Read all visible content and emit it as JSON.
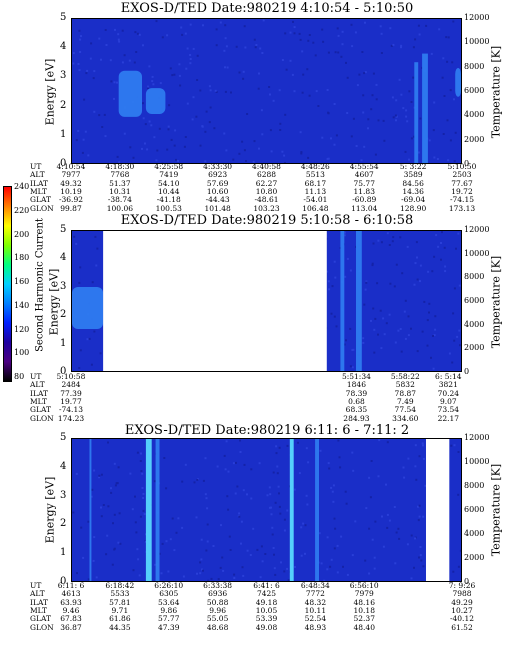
{
  "colorbar": {
    "label": "Second Harmonic Current",
    "ticks": [
      "240",
      "220",
      "200",
      "180",
      "160",
      "140",
      "120",
      "100",
      "80"
    ],
    "colors": [
      "#000000",
      "#4b0082",
      "#1e00a0",
      "#0020ff",
      "#0080ff",
      "#00d0ff",
      "#00ff80",
      "#80ff00",
      "#ffff00",
      "#ff8000",
      "#ff0000"
    ]
  },
  "panels": [
    {
      "title": "EXOS-D/TED   Date:980219  4:10:54 - 5:10:50",
      "ylabel": "Energy [eV]",
      "y2label": "Temperature [K]",
      "yticks": [
        "5",
        "4",
        "3",
        "2",
        "1",
        "0"
      ],
      "y2ticks": [
        "12000",
        "10000",
        "8000",
        "6000",
        "4000",
        "2000",
        "0"
      ],
      "row_labels": [
        "UT",
        "ALT",
        "ILAT",
        "MLT",
        "GLAT",
        "GLON"
      ],
      "columns": [
        {
          "ut": "4:10:54",
          "alt": "7977",
          "ilat": "49.32",
          "mlt": "10.19",
          "glat": "-36.92",
          "glon": "99.87"
        },
        {
          "ut": "4:18:30",
          "alt": "7768",
          "ilat": "51.37",
          "mlt": "10.31",
          "glat": "-38.74",
          "glon": "100.06"
        },
        {
          "ut": "4:25:58",
          "alt": "7419",
          "ilat": "54.10",
          "mlt": "10.44",
          "glat": "-41.18",
          "glon": "100.53"
        },
        {
          "ut": "4:33:30",
          "alt": "6923",
          "ilat": "57.69",
          "mlt": "10.60",
          "glat": "-44.43",
          "glon": "101.48"
        },
        {
          "ut": "4:40:58",
          "alt": "6288",
          "ilat": "62.27",
          "mlt": "10.80",
          "glat": "-48.61",
          "glon": "103.23"
        },
        {
          "ut": "4:48:26",
          "alt": "5513",
          "ilat": "68.17",
          "mlt": "11.13",
          "glat": "-54.01",
          "glon": "106.48"
        },
        {
          "ut": "4:55:54",
          "alt": "4607",
          "ilat": "75.77",
          "mlt": "11.83",
          "glat": "-60.89",
          "glon": "113.04"
        },
        {
          "ut": "5: 3:22",
          "alt": "3589",
          "ilat": "84.56",
          "mlt": "14.36",
          "glat": "-69.04",
          "glon": "128.90"
        },
        {
          "ut": "5:10:50",
          "alt": "2503",
          "ilat": "77.67",
          "mlt": "19.72",
          "glat": "-74.15",
          "glon": "173.13"
        }
      ]
    },
    {
      "title": "EXOS-D/TED   Date:980219  5:10:58 - 6:10:58",
      "ylabel": "Energy [eV]",
      "y2label": "Temperature [K]",
      "yticks": [
        "5",
        "4",
        "3",
        "2",
        "1",
        "0"
      ],
      "y2ticks": [
        "12000",
        "10000",
        "8000",
        "6000",
        "4000",
        "2000",
        "0"
      ],
      "row_labels": [
        "UT",
        "ALT",
        "ILAT",
        "MLT",
        "GLAT",
        "GLON"
      ],
      "columns": [
        {
          "ut": "5:10:58",
          "alt": "2484",
          "ilat": "77.39",
          "mlt": "19.77",
          "glat": "-74.13",
          "glon": "174.23"
        },
        {
          "ut": "5:51:34",
          "alt": "1846",
          "ilat": "78.39",
          "mlt": "0.68",
          "glat": "68.35",
          "glon": "284.93"
        },
        {
          "ut": "5:58:22",
          "alt": "5832",
          "ilat": "78.87",
          "mlt": "7.49",
          "glat": "77.54",
          "glon": "334.60"
        },
        {
          "ut": "6: 5:14",
          "alt": "3821",
          "ilat": "70.24",
          "mlt": "9.07",
          "glat": "73.54",
          "glon": "22.17"
        }
      ]
    },
    {
      "title": "EXOS-D/TED   Date:980219  6:11: 6 - 7:11: 2",
      "ylabel": "Energy [eV]",
      "y2label": "Temperature [K]",
      "yticks": [
        "5",
        "4",
        "3",
        "2",
        "1",
        "0"
      ],
      "y2ticks": [
        "12000",
        "10000",
        "8000",
        "6000",
        "4000",
        "2000",
        "0"
      ],
      "row_labels": [
        "UT",
        "ALT",
        "ILAT",
        "MLT",
        "GLAT",
        "GLON"
      ],
      "columns": [
        {
          "ut": "6:11: 6",
          "alt": "4613",
          "ilat": "63.93",
          "mlt": "9.46",
          "glat": "67.83",
          "glon": "36.87"
        },
        {
          "ut": "6:18:42",
          "alt": "5533",
          "ilat": "57.81",
          "mlt": "9.71",
          "glat": "61.86",
          "glon": "44.35"
        },
        {
          "ut": "6:26:10",
          "alt": "6305",
          "ilat": "53.64",
          "mlt": "9.86",
          "glat": "57.77",
          "glon": "47.39"
        },
        {
          "ut": "6:33:38",
          "alt": "6936",
          "ilat": "50.88",
          "mlt": "9.96",
          "glat": "55.05",
          "glon": "48.68"
        },
        {
          "ut": "6:41: 6",
          "alt": "7425",
          "ilat": "49.18",
          "mlt": "10.05",
          "glat": "53.39",
          "glon": "49.08"
        },
        {
          "ut": "6:48:34",
          "alt": "7772",
          "ilat": "48.32",
          "mlt": "10.11",
          "glat": "52.54",
          "glon": "48.93"
        },
        {
          "ut": "6:56:10",
          "alt": "7979",
          "ilat": "48.16",
          "mlt": "10.18",
          "glat": "52.37",
          "glon": "48.40"
        },
        {
          "ut": "7: 9:26",
          "alt": "7988",
          "ilat": "49.29",
          "mlt": "10.27",
          "glat": "-40.12",
          "glon": "61.52"
        }
      ]
    }
  ],
  "chart_data": [
    {
      "type": "heatmap",
      "title": "EXOS-D/TED   Date:980219  4:10:54 - 5:10:50",
      "xlabel": "",
      "ylabel": "Energy [eV]",
      "y2label": "Temperature [K]",
      "ylim": [
        0,
        5
      ],
      "y2lim": [
        0,
        12000
      ],
      "x_ticks": [
        "4:10:54",
        "4:18:30",
        "4:25:58",
        "4:33:30",
        "4:40:58",
        "4:48:26",
        "4:55:54",
        "5: 3:22",
        "5:10:50"
      ],
      "background_level": "low",
      "features": [
        {
          "kind": "patch",
          "x_fraction": [
            0.12,
            0.18
          ],
          "energy_ev": [
            1.6,
            3.2
          ],
          "level": "medium"
        },
        {
          "kind": "patch",
          "x_fraction": [
            0.19,
            0.24
          ],
          "energy_ev": [
            1.7,
            2.6
          ],
          "level": "medium"
        },
        {
          "kind": "stripe",
          "x_fraction": [
            0.88,
            0.89
          ],
          "energy_ev": [
            0,
            3.5
          ],
          "level": "medium"
        },
        {
          "kind": "stripe",
          "x_fraction": [
            0.9,
            0.915
          ],
          "energy_ev": [
            0,
            3.8
          ],
          "level": "medium"
        },
        {
          "kind": "patch",
          "x_fraction": [
            0.985,
            1.0
          ],
          "energy_ev": [
            2.3,
            3.3
          ],
          "level": "medium"
        }
      ]
    },
    {
      "type": "heatmap",
      "title": "EXOS-D/TED   Date:980219  5:10:58 - 6:10:58",
      "xlabel": "",
      "ylabel": "Energy [eV]",
      "y2label": "Temperature [K]",
      "ylim": [
        0,
        5
      ],
      "y2lim": [
        0,
        12000
      ],
      "x_ticks": [
        "5:10:58",
        "5:51:34",
        "5:58:22",
        "6: 5:14"
      ],
      "data_gap_fraction": [
        0.08,
        0.655
      ],
      "background_level": "low",
      "features": [
        {
          "kind": "patch",
          "x_fraction": [
            0.0,
            0.08
          ],
          "energy_ev": [
            1.5,
            3.0
          ],
          "level": "medium"
        },
        {
          "kind": "stripe",
          "x_fraction": [
            0.69,
            0.7
          ],
          "energy_ev": [
            0,
            5
          ],
          "level": "medium"
        },
        {
          "kind": "stripe",
          "x_fraction": [
            0.73,
            0.745
          ],
          "energy_ev": [
            0,
            5
          ],
          "level": "medium"
        }
      ]
    },
    {
      "type": "heatmap",
      "title": "EXOS-D/TED   Date:980219  6:11: 6 - 7:11: 2",
      "xlabel": "",
      "ylabel": "Energy [eV]",
      "y2label": "Temperature [K]",
      "ylim": [
        0,
        5
      ],
      "y2lim": [
        0,
        12000
      ],
      "x_ticks": [
        "6:11: 6",
        "6:18:42",
        "6:26:10",
        "6:33:38",
        "6:41: 6",
        "6:48:34",
        "6:56:10",
        "7: 9:26"
      ],
      "data_gap_fraction": [
        0.91,
        0.97
      ],
      "background_level": "low",
      "features": [
        {
          "kind": "stripe",
          "x_fraction": [
            0.045,
            0.05
          ],
          "energy_ev": [
            0,
            5
          ],
          "level": "medium"
        },
        {
          "kind": "stripe",
          "x_fraction": [
            0.19,
            0.205
          ],
          "energy_ev": [
            0,
            5
          ],
          "level": "high"
        },
        {
          "kind": "stripe",
          "x_fraction": [
            0.215,
            0.225
          ],
          "energy_ev": [
            0,
            5
          ],
          "level": "medium"
        },
        {
          "kind": "stripe",
          "x_fraction": [
            0.56,
            0.57
          ],
          "energy_ev": [
            0,
            5
          ],
          "level": "high"
        },
        {
          "kind": "stripe",
          "x_fraction": [
            0.625,
            0.635
          ],
          "energy_ev": [
            0,
            5
          ],
          "level": "medium"
        }
      ]
    }
  ]
}
